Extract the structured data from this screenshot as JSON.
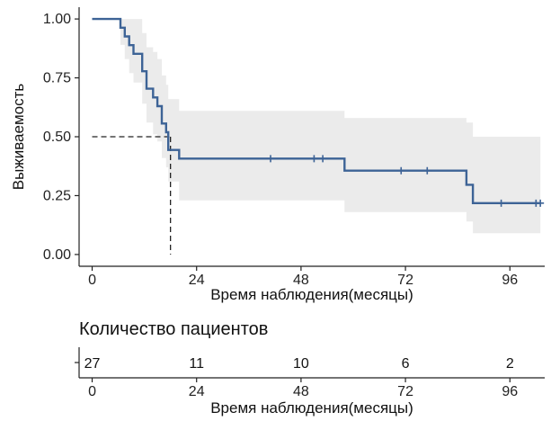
{
  "chart_data": [
    {
      "type": "line",
      "subtype": "kaplan-meier",
      "ylabel": "Выживаемость",
      "xlabel": "Время наблюдения(месяцы)",
      "xlim": [
        -3,
        104
      ],
      "ylim": [
        -0.05,
        1.05
      ],
      "x_ticks": [
        0,
        24,
        48,
        72,
        96
      ],
      "x_tick_labels": [
        "0",
        "24",
        "48",
        "72",
        "96"
      ],
      "y_ticks": [
        0,
        0.25,
        0.5,
        0.75,
        1
      ],
      "y_tick_labels": [
        "0.00",
        "0.25",
        "0.50",
        "0.75",
        "1.00"
      ],
      "grid": false,
      "series": [
        {
          "line_color": "#3d6396",
          "band_color": "#ebebeb",
          "steps": [
            {
              "x": 0,
              "y": 1.0
            },
            {
              "x": 6.5,
              "y": 0.963
            },
            {
              "x": 7.5,
              "y": 0.926
            },
            {
              "x": 8.5,
              "y": 0.889
            },
            {
              "x": 9.5,
              "y": 0.852
            },
            {
              "x": 11.5,
              "y": 0.778
            },
            {
              "x": 12.5,
              "y": 0.704
            },
            {
              "x": 14,
              "y": 0.667
            },
            {
              "x": 15,
              "y": 0.63
            },
            {
              "x": 16,
              "y": 0.556
            },
            {
              "x": 17,
              "y": 0.519
            },
            {
              "x": 17.5,
              "y": 0.444
            },
            {
              "x": 20,
              "y": 0.407
            },
            {
              "x": 58,
              "y": 0.356
            },
            {
              "x": 86,
              "y": 0.296
            },
            {
              "x": 87.5,
              "y": 0.218
            }
          ],
          "end_x": 103,
          "ci_steps": [
            {
              "x": 0,
              "lower": 1.0,
              "upper": 1.0
            },
            {
              "x": 6.5,
              "lower": 0.89,
              "upper": 1.0
            },
            {
              "x": 7.5,
              "lower": 0.83,
              "upper": 1.0
            },
            {
              "x": 8.5,
              "lower": 0.77,
              "upper": 1.0
            },
            {
              "x": 9.5,
              "lower": 0.73,
              "upper": 1.0
            },
            {
              "x": 11.5,
              "lower": 0.64,
              "upper": 0.94
            },
            {
              "x": 12.5,
              "lower": 0.56,
              "upper": 0.88
            },
            {
              "x": 14,
              "lower": 0.51,
              "upper": 0.86
            },
            {
              "x": 15,
              "lower": 0.48,
              "upper": 0.83
            },
            {
              "x": 16,
              "lower": 0.41,
              "upper": 0.76
            },
            {
              "x": 17,
              "lower": 0.37,
              "upper": 0.72
            },
            {
              "x": 17.5,
              "lower": 0.31,
              "upper": 0.66
            },
            {
              "x": 20,
              "lower": 0.23,
              "upper": 0.61
            },
            {
              "x": 58,
              "lower": 0.18,
              "upper": 0.58
            },
            {
              "x": 86,
              "lower": 0.14,
              "upper": 0.56
            },
            {
              "x": 87.5,
              "lower": 0.09,
              "upper": 0.5
            }
          ],
          "censor_times": [
            41,
            51,
            53,
            71,
            77,
            94,
            102,
            103
          ]
        }
      ],
      "median_survival": {
        "x": 18,
        "y": 0.5
      }
    },
    {
      "type": "table",
      "title": "Количество пациентов",
      "xlabel": "Время наблюдения(месяцы)",
      "x_ticks": [
        0,
        24,
        48,
        72,
        96
      ],
      "x_tick_labels": [
        "0",
        "24",
        "48",
        "72",
        "96"
      ],
      "counts": [
        "27",
        "11",
        "10",
        "6",
        "2"
      ]
    }
  ]
}
